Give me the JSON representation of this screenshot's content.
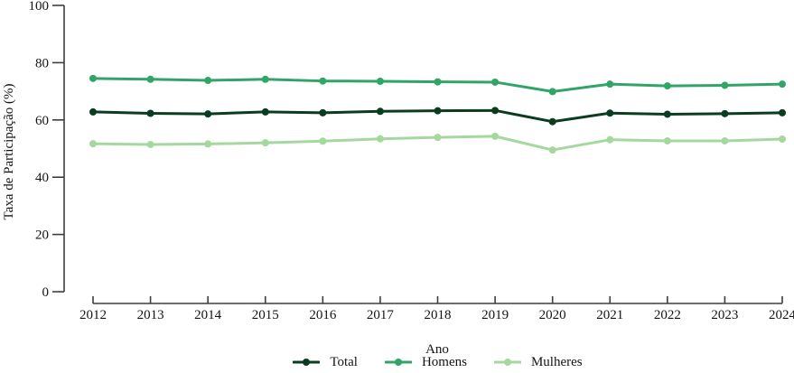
{
  "chart_data": {
    "type": "line",
    "title": "",
    "xlabel": "Ano",
    "ylabel": "Taxa de Participação (%)",
    "x": [
      2012,
      2013,
      2014,
      2015,
      2016,
      2017,
      2018,
      2019,
      2020,
      2021,
      2022,
      2023,
      2024
    ],
    "ylim": [
      0,
      100
    ],
    "yticks": [
      0,
      20,
      40,
      60,
      80,
      100
    ],
    "grid": false,
    "legend_position": "bottom-center",
    "marker": "circle",
    "axis_color": "#3d3d3d",
    "text_color": "#141414",
    "background_color": "#ffffff",
    "series": [
      {
        "name": "Total",
        "color": "#0a3d1f",
        "values": [
          62.8,
          62.3,
          62.1,
          62.8,
          62.5,
          63.0,
          63.2,
          63.3,
          59.4,
          62.4,
          62.0,
          62.2,
          62.5
        ]
      },
      {
        "name": "Homens",
        "color": "#31a567",
        "values": [
          74.5,
          74.2,
          73.8,
          74.2,
          73.6,
          73.5,
          73.3,
          73.2,
          69.9,
          72.5,
          71.9,
          72.1,
          72.5
        ]
      },
      {
        "name": "Mulheres",
        "color": "#a5d89e",
        "values": [
          51.7,
          51.4,
          51.6,
          52.0,
          52.6,
          53.4,
          53.9,
          54.3,
          49.5,
          53.1,
          52.7,
          52.7,
          53.3
        ]
      }
    ]
  }
}
